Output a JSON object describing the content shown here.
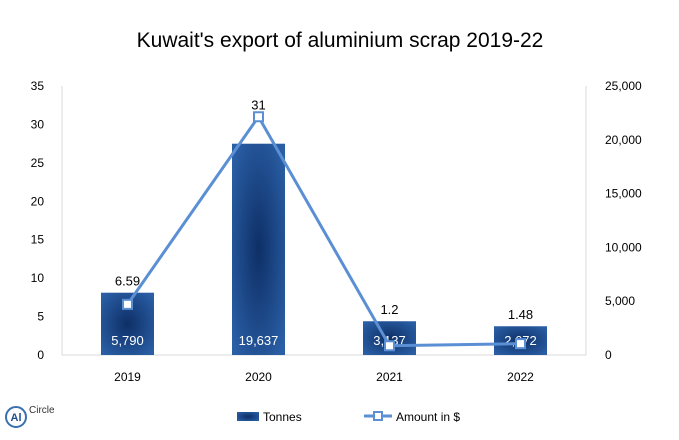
{
  "chart_data": {
    "type": "bar",
    "title": "Kuwait's export of aluminium scrap 2019-22",
    "categories": [
      "2019",
      "2020",
      "2021",
      "2022"
    ],
    "series": [
      {
        "name": "Tonnes",
        "kind": "bar",
        "axis": "right",
        "values": [
          5790,
          19637,
          3137,
          2672
        ],
        "labels": [
          "5,790",
          "19,637",
          "3,137",
          "2,672"
        ],
        "color": "#1f4e8c"
      },
      {
        "name": "Amount in $",
        "kind": "line",
        "axis": "left",
        "values": [
          6.59,
          31,
          1.2,
          1.48
        ],
        "labels": [
          "6.59",
          "31",
          "1.2",
          "1.48"
        ],
        "color": "#5b8fd4"
      }
    ],
    "left_axis": {
      "ticks": [
        "0",
        "5",
        "10",
        "15",
        "20",
        "25",
        "30",
        "35"
      ],
      "ylim": [
        0,
        35
      ]
    },
    "right_axis": {
      "ticks": [
        "0",
        "5,000",
        "10,000",
        "15,000",
        "20,000",
        "25,000"
      ],
      "ylim": [
        0,
        25000
      ]
    },
    "grid": false,
    "legend_position": "bottom"
  },
  "brand": {
    "logo_text": "Al",
    "name": "Circle"
  }
}
